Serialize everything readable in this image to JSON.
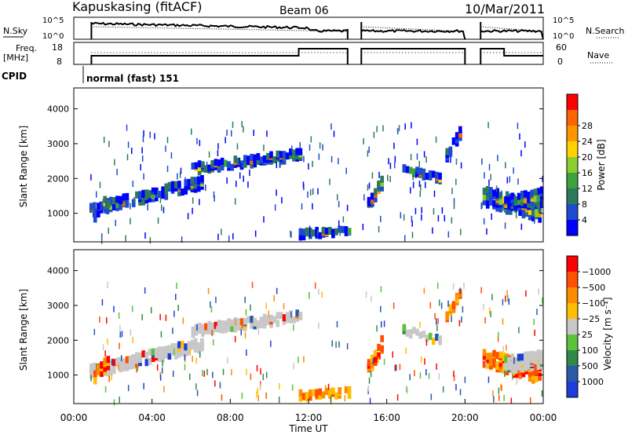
{
  "header": {
    "station": "Kapuskasing (fitACF)",
    "beam": "Beam 06",
    "date": "10/Mar/2011"
  },
  "status_panels": {
    "nsky_label": "N.Sky",
    "nsky_ticks": [
      "10^5",
      "10^0"
    ],
    "nsearch_label": "N.Search",
    "nsearch_ticks": [
      "10^5",
      "10^0"
    ],
    "freq_label_line1": "Freq.",
    "freq_label_line2": "[MHz]",
    "freq_ticks": [
      "18",
      "8"
    ],
    "nave_label": "Nave",
    "nave_ticks": [
      "60",
      "0"
    ],
    "cpid_label": "CPID",
    "cpid_text": "normal (fast) 151"
  },
  "chart_data": [
    {
      "type": "heatmap",
      "title": "",
      "ylabel": "Slant Range [km]",
      "xlabel": "",
      "ylim": [
        180,
        4600
      ],
      "yticks": [
        "1000",
        "2000",
        "3000",
        "4000"
      ],
      "colorbar": {
        "label": "Power [dB]",
        "ticks": [
          "4",
          "8",
          "12",
          "16",
          "20",
          "24",
          "28"
        ],
        "colors": [
          "#0000ff",
          "#1e4bd2",
          "#2c7a5c",
          "#3ca23c",
          "#8ccd32",
          "#ffd200",
          "#ff9600",
          "#ff6400",
          "#ff0000"
        ]
      }
    },
    {
      "type": "heatmap",
      "title": "",
      "ylabel": "Slant Range [km]",
      "xlabel": "Time UT",
      "ylim": [
        180,
        4600
      ],
      "yticks": [
        "1000",
        "2000",
        "3000",
        "4000"
      ],
      "xticks": [
        "00:00",
        "04:00",
        "08:00",
        "12:00",
        "16:00",
        "20:00",
        "00:00"
      ],
      "colorbar": {
        "label": "Velocity [m s⁻¹]",
        "ticks": [
          "1000",
          "500",
          "100",
          "25",
          "−25",
          "−100",
          "−500",
          "−1000"
        ],
        "colors": [
          "#1e3cdc",
          "#2a5aa6",
          "#2f8a4a",
          "#5cc23a",
          "#c8c8c8",
          "#ffbe00",
          "#ff8c00",
          "#ff5000",
          "#ff0000"
        ]
      }
    }
  ]
}
